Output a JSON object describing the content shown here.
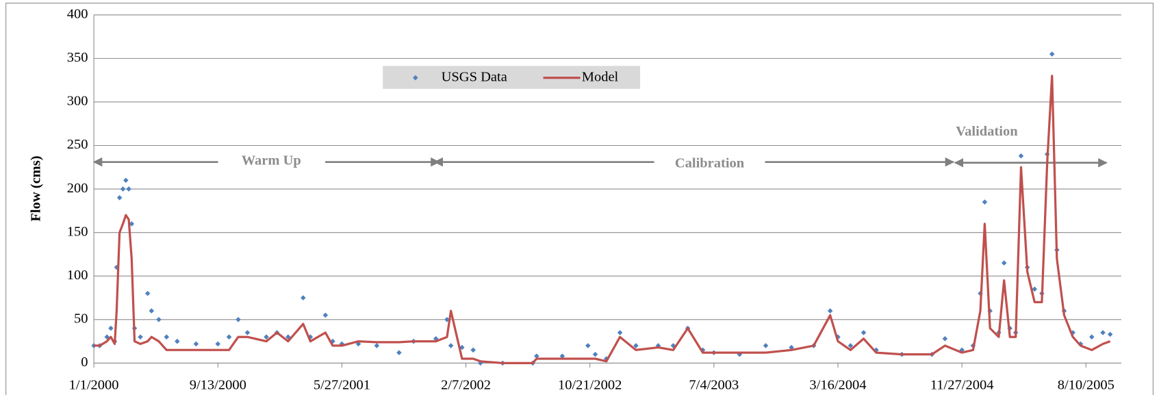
{
  "chart_data": {
    "type": "line",
    "y_label": "Flow (cms)",
    "annotations": [
      "Warm Up",
      "Calibration",
      "Validation"
    ],
    "x": [
      "2000-01-01",
      "2000-01-13",
      "2000-01-28",
      "2000-02-05",
      "2000-02-13",
      "2000-02-17",
      "2000-02-23",
      "2000-03-01",
      "2000-03-07",
      "2000-03-13",
      "2000-03-19",
      "2000-03-25",
      "2000-04-06",
      "2000-04-21",
      "2000-04-29",
      "2000-05-14",
      "2000-05-30",
      "2000-06-21",
      "2000-07-30",
      "2000-09-13",
      "2000-10-06",
      "2000-10-25",
      "2000-11-13",
      "2000-12-22",
      "2001-01-13",
      "2001-02-05",
      "2001-03-08",
      "2001-03-23",
      "2001-04-23",
      "2001-05-08",
      "2001-05-27",
      "2001-06-30",
      "2001-08-07",
      "2001-09-22",
      "2001-10-22",
      "2001-12-07",
      "2001-12-30",
      "2002-01-07",
      "2002-01-30",
      "2002-02-22",
      "2002-03-09",
      "2002-04-24",
      "2002-06-25",
      "2002-07-03",
      "2002-08-25",
      "2002-10-17",
      "2002-11-01",
      "2002-11-24",
      "2002-12-22",
      "2003-01-24",
      "2003-03-11",
      "2003-04-11",
      "2003-05-11",
      "2003-06-11",
      "2003-07-04",
      "2003-08-26",
      "2003-10-19",
      "2003-12-11",
      "2004-01-26",
      "2004-02-29",
      "2004-03-16",
      "2004-04-11",
      "2004-05-08",
      "2004-06-03",
      "2004-07-26",
      "2004-09-26",
      "2004-10-23",
      "2004-11-27",
      "2004-12-20",
      "2005-01-04",
      "2005-01-13",
      "2005-01-24",
      "2005-02-11",
      "2005-02-22",
      "2005-03-06",
      "2005-03-18",
      "2005-03-29",
      "2005-04-11",
      "2005-04-26",
      "2005-05-11",
      "2005-05-22",
      "2005-06-01",
      "2005-06-11",
      "2005-06-26",
      "2005-07-14",
      "2005-07-30",
      "2005-08-22",
      "2005-09-14",
      "2005-09-29"
    ],
    "series": [
      {
        "name": "USGS Data",
        "type": "scatter",
        "color": "#4f81bd",
        "values": [
          20,
          20,
          30,
          40,
          25,
          110,
          190,
          200,
          210,
          200,
          160,
          40,
          30,
          80,
          60,
          50,
          30,
          25,
          22,
          22,
          30,
          50,
          35,
          30,
          35,
          30,
          75,
          30,
          55,
          25,
          22,
          22,
          20,
          12,
          25,
          28,
          50,
          20,
          18,
          15,
          0,
          0,
          0,
          8,
          8,
          20,
          10,
          5,
          35,
          20,
          20,
          20,
          40,
          15,
          12,
          10,
          20,
          18,
          20,
          60,
          30,
          20,
          35,
          15,
          10,
          10,
          28,
          15,
          20,
          80,
          185,
          60,
          35,
          115,
          40,
          35,
          238,
          110,
          85,
          80,
          240,
          355,
          130,
          60,
          35,
          22,
          30,
          35,
          33
        ]
      },
      {
        "name": "Model",
        "type": "line",
        "color": "#c0504d",
        "values": [
          20,
          20,
          25,
          30,
          22,
          60,
          150,
          160,
          170,
          165,
          120,
          25,
          22,
          25,
          30,
          25,
          15,
          15,
          15,
          15,
          15,
          30,
          30,
          25,
          35,
          25,
          45,
          25,
          35,
          20,
          20,
          25,
          24,
          24,
          25,
          25,
          30,
          60,
          5,
          5,
          2,
          0,
          0,
          5,
          5,
          5,
          5,
          2,
          30,
          15,
          18,
          15,
          40,
          12,
          12,
          12,
          12,
          15,
          20,
          55,
          25,
          15,
          28,
          12,
          10,
          10,
          20,
          12,
          15,
          60,
          160,
          40,
          30,
          95,
          30,
          30,
          225,
          105,
          70,
          70,
          230,
          330,
          120,
          55,
          30,
          20,
          15,
          22,
          25
        ]
      }
    ],
    "xlim": [
      "2000-01-01",
      "2005-10-22"
    ],
    "xticks": [
      {
        "value": "2000-01-01",
        "label": "1/1/2000"
      },
      {
        "value": "2000-09-13",
        "label": "9/13/2000"
      },
      {
        "value": "2001-05-27",
        "label": "5/27/2001"
      },
      {
        "value": "2002-02-07",
        "label": "2/7/2002"
      },
      {
        "value": "2002-10-21",
        "label": "10/21/2002"
      },
      {
        "value": "2003-07-04",
        "label": "7/4/2003"
      },
      {
        "value": "2004-03-16",
        "label": "3/16/2004"
      },
      {
        "value": "2004-11-27",
        "label": "11/27/2004"
      },
      {
        "value": "2005-08-10",
        "label": "8/10/2005"
      }
    ],
    "ylim": [
      0,
      400
    ],
    "yticks": [
      0,
      50,
      100,
      150,
      200,
      250,
      300,
      350,
      400
    ],
    "grid": true
  }
}
